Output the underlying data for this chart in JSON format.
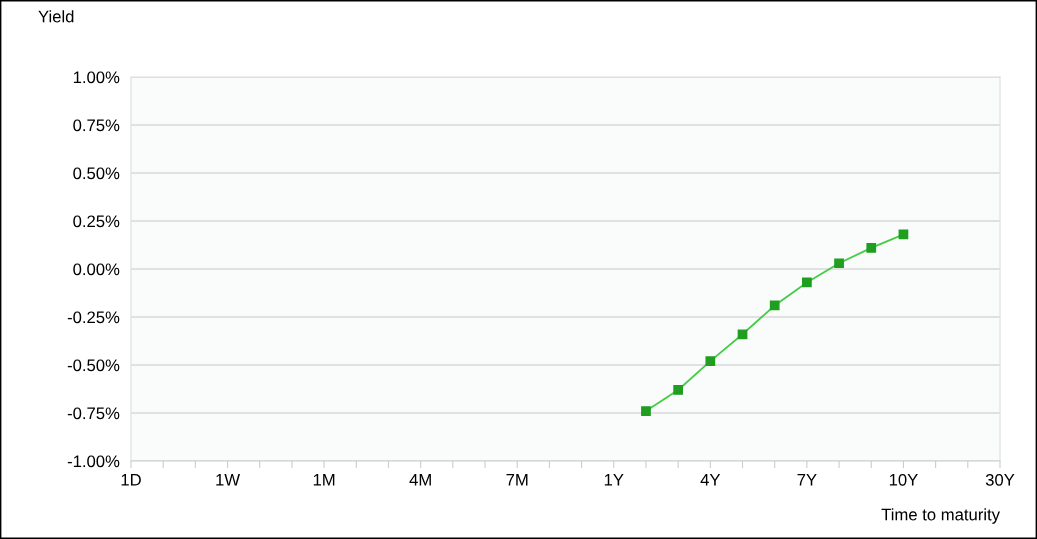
{
  "chart_data": {
    "type": "line",
    "ylabel": "Yield",
    "xlabel": "Time to maturity",
    "categories": [
      "1D",
      null,
      null,
      "1W",
      null,
      null,
      "1M",
      null,
      null,
      "4M",
      null,
      null,
      "7M",
      null,
      null,
      "1Y",
      null,
      null,
      "4Y",
      null,
      null,
      "7Y",
      null,
      null,
      "10Y",
      null,
      null,
      "30Y"
    ],
    "series": [
      {
        "color": "#1f9e1f",
        "values": [
          null,
          null,
          null,
          null,
          null,
          null,
          null,
          null,
          null,
          null,
          null,
          null,
          null,
          null,
          null,
          null,
          -0.74,
          -0.63,
          -0.48,
          -0.34,
          -0.19,
          -0.07,
          0.03,
          0.11,
          0.18,
          null,
          null,
          null
        ]
      }
    ],
    "ylim": [
      -1.0,
      1.0
    ],
    "yticks": [
      {
        "value": -1.0,
        "label": "-1.00%"
      },
      {
        "value": -0.75,
        "label": "-0.75%"
      },
      {
        "value": -0.5,
        "label": "-0.50%"
      },
      {
        "value": -0.25,
        "label": "-0.25%"
      },
      {
        "value": 0,
        "label": "0.00%"
      },
      {
        "value": 0.25,
        "label": "0.25%"
      },
      {
        "value": 0.5,
        "label": "0.50%"
      },
      {
        "value": 0.75,
        "label": "0.75%"
      },
      {
        "value": 1.0,
        "label": "1.00%"
      }
    ],
    "grid": "y",
    "marker": "square",
    "line_style": "solid"
  }
}
